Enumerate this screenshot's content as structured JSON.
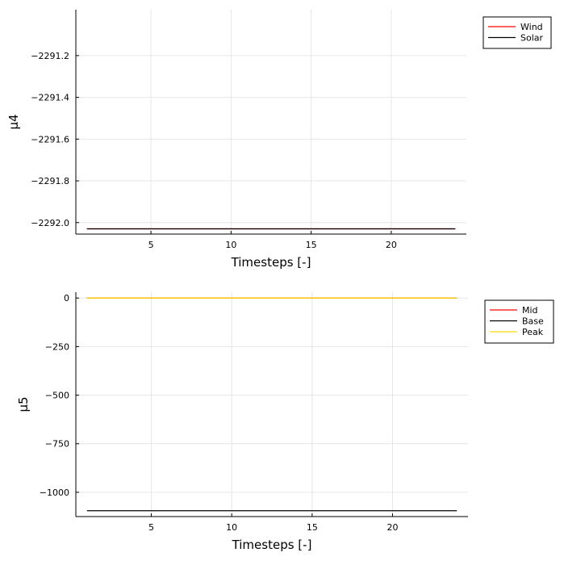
{
  "chart_data": [
    {
      "type": "line",
      "xlabel": "Timesteps [-]",
      "ylabel": "μ4",
      "xlim": [
        0.31,
        24.69
      ],
      "ylim": [
        -2292.055,
        -2290.98
      ],
      "xticks": [
        5,
        10,
        15,
        20
      ],
      "xtick_labels": [
        "5",
        "10",
        "15",
        "20"
      ],
      "yticks": [
        -2291.2,
        -2291.4,
        -2291.6,
        -2291.8,
        -2292.0
      ],
      "ytick_labels": [
        "−2291.2",
        "−2291.4",
        "−2291.6",
        "−2291.8",
        "−2292.0"
      ],
      "grid": true,
      "legend_position": "outside-top-right",
      "series": [
        {
          "name": "Wind",
          "color": "#ff0000",
          "x": [
            1,
            24
          ],
          "y": [
            -2292.03,
            -2292.03
          ]
        },
        {
          "name": "Solar",
          "color": "#000000",
          "x": [
            1,
            24
          ],
          "y": [
            -2292.03,
            -2292.03
          ]
        }
      ]
    },
    {
      "type": "line",
      "xlabel": "Timesteps [-]",
      "ylabel": "μ5",
      "xlim": [
        0.31,
        24.69
      ],
      "ylim": [
        -1125,
        30
      ],
      "xticks": [
        5,
        10,
        15,
        20
      ],
      "xtick_labels": [
        "5",
        "10",
        "15",
        "20"
      ],
      "yticks": [
        0,
        -250,
        -500,
        -750,
        -1000
      ],
      "ytick_labels": [
        "0",
        "−250",
        "−500",
        "−750",
        "−1000"
      ],
      "grid": true,
      "legend_position": "outside-top-right",
      "series": [
        {
          "name": "Mid",
          "color": "#ff0000",
          "x": [
            1,
            24
          ],
          "y": [
            0,
            0
          ]
        },
        {
          "name": "Base",
          "color": "#000000",
          "x": [
            1,
            24
          ],
          "y": [
            -1095,
            -1095
          ]
        },
        {
          "name": "Peak",
          "color": "#ffd700",
          "x": [
            1,
            24
          ],
          "y": [
            0,
            0
          ]
        }
      ]
    }
  ]
}
